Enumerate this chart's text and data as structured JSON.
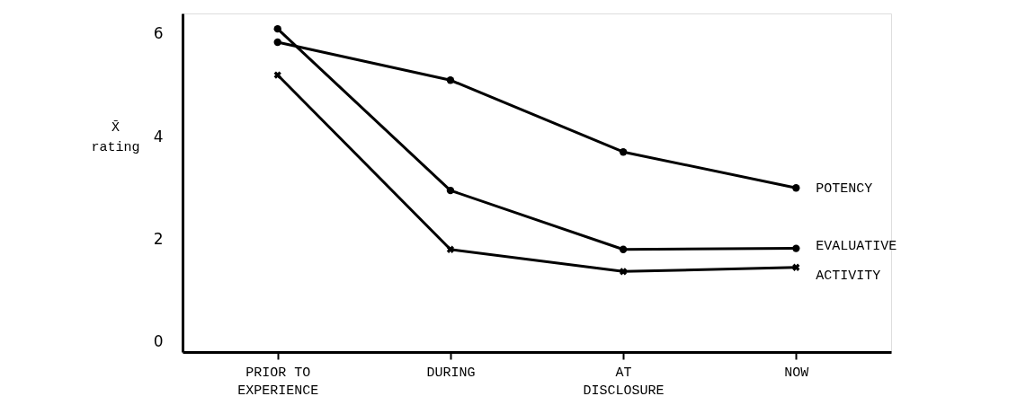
{
  "chart_data": {
    "type": "line",
    "ylabel": "X̄\nrating",
    "categories": [
      "PRIOR TO\nEXPERIENCE",
      "DURING",
      "AT\nDISCLOSURE",
      "NOW"
    ],
    "series": [
      {
        "name": "POTENCY",
        "color": "#000000",
        "marker": "circle",
        "values": [
          5.84,
          5.1,
          3.7,
          3.0
        ]
      },
      {
        "name": "EVALUATIVE",
        "color": "#000000",
        "marker": "circle",
        "values": [
          6.1,
          2.95,
          1.8,
          1.82
        ]
      },
      {
        "name": "ACTIVITY",
        "color": "#000000",
        "marker": "cross",
        "values": [
          5.2,
          1.8,
          1.37,
          1.45
        ]
      }
    ],
    "ylim": [
      -0.2,
      6.4
    ],
    "yticks": [
      0,
      2,
      4,
      6
    ],
    "grid": false,
    "line_style": "solid"
  }
}
